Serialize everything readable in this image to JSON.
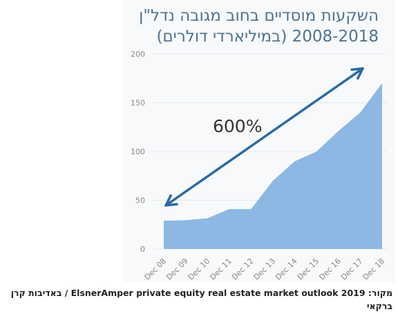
{
  "chart_data": {
    "type": "area",
    "title_line1": "השקעות מוסדיים בחוב מגובה נדל\"ן",
    "title_line2": "2008-2018 (במיליארדי דולרים)",
    "categories": [
      "Dec 08",
      "Dec 09",
      "Dec 10",
      "Dec 11",
      "Dec 12",
      "Dec 13",
      "Dec 14",
      "Dec 15",
      "Dec 16",
      "Dec 17",
      "Dec 18"
    ],
    "values": [
      29,
      29.5,
      31.5,
      41,
      41,
      70,
      90,
      100,
      121,
      140,
      170
    ],
    "yticks": [
      0,
      50,
      100,
      150,
      200
    ],
    "ylim": [
      0,
      200
    ],
    "grid": true,
    "annotation": "600%",
    "colors": {
      "area": "#8db8e3",
      "arrow": "#2b6aa1",
      "axis_text": "#888888",
      "title": "#4d7290"
    }
  },
  "caption": "מקור: ElsnerAmper private equity real estate market outlook 2019 / באדיבות קרן ברקאי"
}
